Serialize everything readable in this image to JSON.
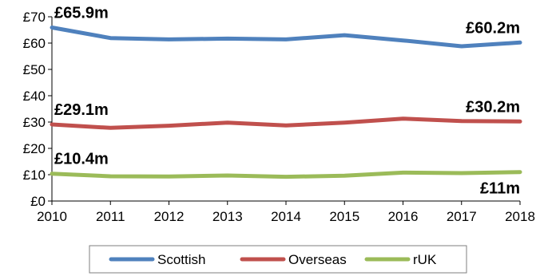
{
  "chart_data": {
    "type": "line",
    "title": "",
    "xlabel": "",
    "ylabel": "",
    "x": [
      2010,
      2011,
      2012,
      2013,
      2014,
      2015,
      2016,
      2017,
      2018
    ],
    "ylim": [
      0,
      70
    ],
    "yticks": [
      0,
      10,
      20,
      30,
      40,
      50,
      60,
      70
    ],
    "ytick_labels": [
      "£0",
      "£10",
      "£20",
      "£30",
      "£40",
      "£50",
      "£60",
      "£70"
    ],
    "xtick_labels": [
      "2010",
      "2011",
      "2012",
      "2013",
      "2014",
      "2015",
      "2016",
      "2017",
      "2018"
    ],
    "grid": false,
    "legend_position": "bottom",
    "series": [
      {
        "name": "Scottish",
        "color": "#4f81bd",
        "values": [
          65.9,
          61.9,
          61.4,
          61.7,
          61.4,
          63.0,
          61.0,
          58.8,
          60.2
        ],
        "start_label": "£65.9m",
        "end_label": "£60.2m"
      },
      {
        "name": "Overseas",
        "color": "#c0504d",
        "values": [
          29.1,
          27.8,
          28.6,
          29.8,
          28.7,
          29.8,
          31.3,
          30.4,
          30.2
        ],
        "start_label": "£29.1m",
        "end_label": "£30.2m"
      },
      {
        "name": "rUK",
        "color": "#9bbb59",
        "values": [
          10.4,
          9.4,
          9.3,
          9.7,
          9.2,
          9.6,
          10.8,
          10.6,
          11.0
        ],
        "start_label": "£10.4m",
        "end_label": "£11m"
      }
    ]
  }
}
